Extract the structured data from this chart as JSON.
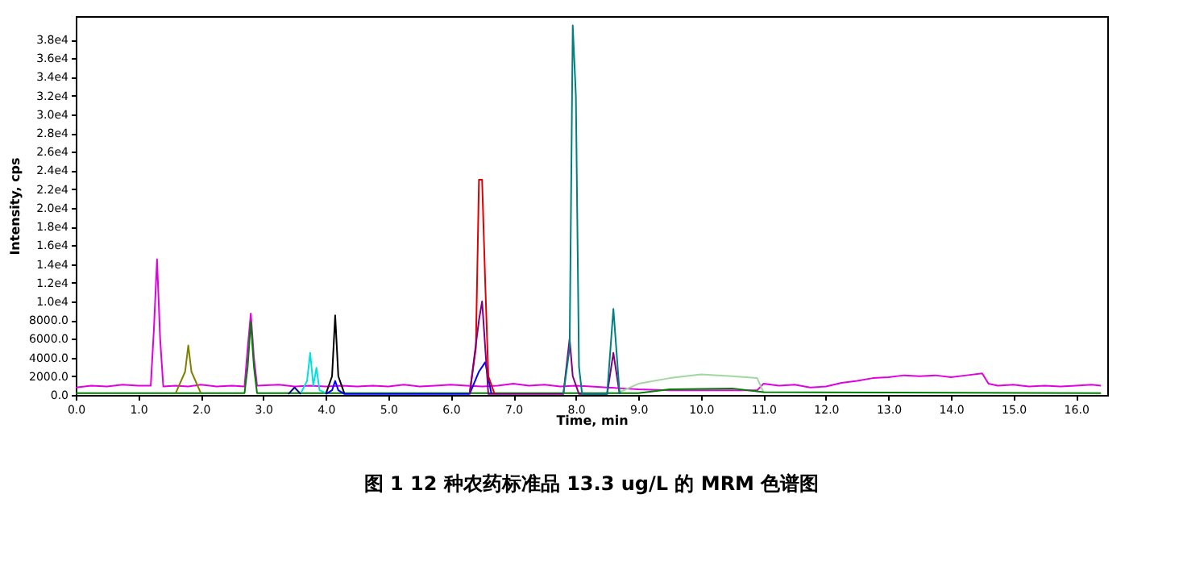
{
  "chart_data": {
    "type": "line",
    "title": "图 1 12 种农药标准品 13.3 ug/L 的 MRM 色谱图",
    "xlabel": "Time, min",
    "ylabel": "Intensity, cps",
    "xlim": [
      0,
      16.5
    ],
    "ylim": [
      0,
      40500
    ],
    "xticks": [
      {
        "value": 0,
        "label": "0.0"
      },
      {
        "value": 1,
        "label": "1.0"
      },
      {
        "value": 2,
        "label": "2.0"
      },
      {
        "value": 3,
        "label": "3.0"
      },
      {
        "value": 4,
        "label": "4.0"
      },
      {
        "value": 5,
        "label": "5.0"
      },
      {
        "value": 6,
        "label": "6.0"
      },
      {
        "value": 7,
        "label": "7.0"
      },
      {
        "value": 8,
        "label": "8.0"
      },
      {
        "value": 9,
        "label": "9.0"
      },
      {
        "value": 10,
        "label": "10.0"
      },
      {
        "value": 11,
        "label": "11.0"
      },
      {
        "value": 12,
        "label": "12.0"
      },
      {
        "value": 13,
        "label": "13.0"
      },
      {
        "value": 14,
        "label": "14.0"
      },
      {
        "value": 15,
        "label": "15.0"
      },
      {
        "value": 16,
        "label": "16.0"
      }
    ],
    "yticks": [
      {
        "value": 0,
        "label": "0.0"
      },
      {
        "value": 2000,
        "label": "2000.0"
      },
      {
        "value": 4000,
        "label": "4000.0"
      },
      {
        "value": 6000,
        "label": "6000.0"
      },
      {
        "value": 8000,
        "label": "8000.0"
      },
      {
        "value": 10000,
        "label": "1.0e4"
      },
      {
        "value": 12000,
        "label": "1.2e4"
      },
      {
        "value": 14000,
        "label": "1.4e4"
      },
      {
        "value": 16000,
        "label": "1.6e4"
      },
      {
        "value": 18000,
        "label": "1.8e4"
      },
      {
        "value": 20000,
        "label": "2.0e4"
      },
      {
        "value": 22000,
        "label": "2.2e4"
      },
      {
        "value": 24000,
        "label": "2.4e4"
      },
      {
        "value": 26000,
        "label": "2.6e4"
      },
      {
        "value": 28000,
        "label": "2.8e4"
      },
      {
        "value": 30000,
        "label": "3.0e4"
      },
      {
        "value": 32000,
        "label": "3.2e4"
      },
      {
        "value": 34000,
        "label": "3.4e4"
      },
      {
        "value": 36000,
        "label": "3.6e4"
      },
      {
        "value": 38000,
        "label": "3.8e4"
      }
    ],
    "grid": false,
    "line_style": "solid",
    "marker": "none",
    "series": [
      {
        "color": "#e000e0",
        "x": [
          0,
          0.25,
          0.5,
          0.75,
          1.0,
          1.2,
          1.25,
          1.3,
          1.35,
          1.4,
          1.6,
          1.8,
          2.0,
          2.25,
          2.5,
          2.7,
          2.75,
          2.8,
          2.85,
          2.9,
          3.25,
          3.5,
          3.75,
          4.0,
          4.25,
          4.5,
          4.75,
          5.0,
          5.25,
          5.5,
          5.75,
          6.0,
          6.25,
          6.5,
          6.75,
          7.0,
          7.25,
          7.5,
          7.75,
          8.0,
          8.25,
          8.5,
          8.75,
          9.0,
          9.5,
          10.0,
          10.5,
          10.9,
          11.0,
          11.25,
          11.5,
          11.75,
          12.0,
          12.25,
          12.5,
          12.75,
          13.0,
          13.25,
          13.5,
          13.75,
          14.0,
          14.25,
          14.5,
          14.6,
          14.75,
          15.0,
          15.25,
          15.5,
          15.75,
          16.0,
          16.25,
          16.4
        ],
        "values": [
          800,
          1000,
          900,
          1100,
          1000,
          1000,
          7000,
          14500,
          6000,
          900,
          1000,
          900,
          1100,
          900,
          1000,
          900,
          5000,
          8700,
          4000,
          1000,
          1100,
          900,
          1000,
          900,
          1000,
          900,
          1000,
          900,
          1100,
          900,
          1000,
          1100,
          1000,
          900,
          1000,
          1200,
          1000,
          1100,
          900,
          1000,
          900,
          800,
          700,
          600,
          500,
          500,
          500,
          500,
          1200,
          1000,
          1100,
          800,
          900,
          1300,
          1500,
          1800,
          1900,
          2100,
          2000,
          2100,
          1900,
          2100,
          2300,
          1200,
          1000,
          1100,
          900,
          1000,
          900,
          1000,
          1100,
          1000
        ]
      },
      {
        "color": "#a0d8a0",
        "x": [
          8.7,
          9.0,
          9.5,
          10.0,
          10.5,
          10.9,
          11.0
        ],
        "values": [
          300,
          1200,
          1800,
          2200,
          2000,
          1800,
          300
        ]
      },
      {
        "color": "#008000",
        "x": [
          0,
          2.7,
          2.75,
          2.8,
          2.85,
          2.9,
          9.0,
          9.5,
          10.5,
          11.0,
          16.4
        ],
        "values": [
          200,
          200,
          3000,
          7800,
          3000,
          200,
          200,
          600,
          700,
          300,
          200
        ]
      },
      {
        "color": "#808000",
        "x": [
          1.6,
          1.75,
          1.8,
          1.85,
          2.0
        ],
        "values": [
          200,
          2500,
          5300,
          2500,
          200
        ]
      },
      {
        "color": "#00e0e0",
        "x": [
          3.6,
          3.7,
          3.75,
          3.8,
          3.85,
          3.9,
          4.0
        ],
        "values": [
          200,
          1500,
          4500,
          1000,
          2900,
          500,
          200
        ]
      },
      {
        "color": "#000080",
        "x": [
          3.4,
          3.5,
          3.6
        ],
        "values": [
          100,
          800,
          100
        ]
      },
      {
        "color": "#000000",
        "x": [
          4.0,
          4.1,
          4.15,
          4.2,
          4.3
        ],
        "values": [
          100,
          2000,
          8500,
          2000,
          100
        ]
      },
      {
        "color": "#0000ff",
        "x": [
          4.0,
          4.1,
          4.15,
          4.2,
          4.3,
          6.3,
          6.45,
          6.55,
          6.65
        ],
        "values": [
          100,
          500,
          1500,
          500,
          100,
          100,
          2500,
          3500,
          100
        ]
      },
      {
        "color": "#e00000",
        "x": [
          6.3,
          6.4,
          6.45,
          6.5,
          6.55,
          6.6,
          6.7
        ],
        "values": [
          100,
          5000,
          23000,
          23000,
          12000,
          2000,
          100
        ]
      },
      {
        "color": "#800080",
        "x": [
          6.3,
          6.45,
          6.5,
          6.6,
          7.8,
          7.9,
          7.95,
          8.05,
          8.5,
          8.6,
          8.7
        ],
        "values": [
          100,
          8000,
          10000,
          100,
          100,
          6000,
          2000,
          100,
          100,
          4500,
          100
        ]
      },
      {
        "color": "#008080",
        "x": [
          7.8,
          7.9,
          7.95,
          8.0,
          8.05,
          8.1,
          8.5,
          8.6,
          8.7
        ],
        "values": [
          100,
          5000,
          39500,
          32000,
          3000,
          100,
          100,
          9200,
          100
        ]
      }
    ]
  }
}
